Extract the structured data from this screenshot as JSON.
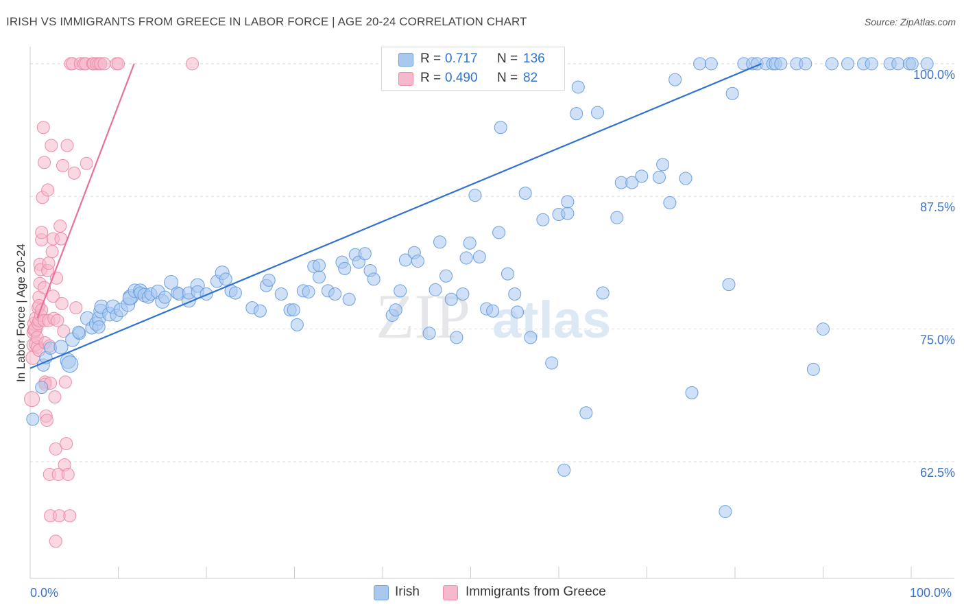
{
  "title": "IRISH VS IMMIGRANTS FROM GREECE IN LABOR FORCE | AGE 20-24 CORRELATION CHART",
  "source": "Source: ZipAtlas.com",
  "watermark": {
    "zip": "ZIP",
    "atlas": "atlas"
  },
  "colors": {
    "irish_fill": "#a9c8f0",
    "irish_stroke": "#6a9fe0",
    "irish_line": "#2f72d1",
    "greece_fill": "#f6b8cb",
    "greece_stroke": "#ee8aa8",
    "greece_line": "#e8709a",
    "axis_label": "#3a72c8",
    "grid": "#dddddd"
  },
  "legend": {
    "rows": [
      {
        "r_label": "R =",
        "r_value": "0.717",
        "n_label": "N =",
        "n_value": "136"
      },
      {
        "r_label": "R =",
        "r_value": "0.490",
        "n_label": "N =",
        "n_value": "82"
      }
    ]
  },
  "bottom_legend": {
    "series1": "Irish",
    "series2": "Immigrants from Greece"
  },
  "chart_data": {
    "type": "scatter",
    "title": "IRISH VS IMMIGRANTS FROM GREECE IN LABOR FORCE | AGE 20-24 CORRELATION CHART",
    "xlabel": "",
    "ylabel": "In Labor Force | Age 20-24",
    "xlim": [
      0,
      100
    ],
    "ylim": [
      51.5,
      102
    ],
    "x_tick_labels": [
      "0.0%",
      "100.0%"
    ],
    "y_ticks": [
      {
        "value": 62.5,
        "label": "62.5%"
      },
      {
        "value": 75.0,
        "label": "75.0%"
      },
      {
        "value": 87.5,
        "label": "87.5%"
      },
      {
        "value": 100.0,
        "label": "100.0%"
      }
    ],
    "series": [
      {
        "name": "Irish",
        "trend": {
          "x": [
            0,
            83
          ],
          "y": [
            71.3,
            100.0
          ]
        },
        "points": [
          [
            0.3,
            66.5,
            9
          ],
          [
            1.3,
            69.5,
            9
          ],
          [
            1.5,
            71.6,
            9
          ],
          [
            1.8,
            72.3,
            9
          ],
          [
            2.3,
            73.2,
            9
          ],
          [
            3.5,
            73.3,
            10
          ],
          [
            4.3,
            72.0,
            11
          ],
          [
            4.5,
            71.7,
            12
          ],
          [
            4.8,
            74.0,
            10
          ],
          [
            5.6,
            74.6,
            9
          ],
          [
            5.5,
            74.7,
            9
          ],
          [
            6.5,
            76.0,
            10
          ],
          [
            7.0,
            75.1,
            9
          ],
          [
            7.5,
            75.5,
            10
          ],
          [
            7.8,
            76.0,
            10
          ],
          [
            7.8,
            75.2,
            9
          ],
          [
            8.0,
            76.7,
            10
          ],
          [
            8.1,
            77.1,
            10
          ],
          [
            9.0,
            76.4,
            10
          ],
          [
            9.4,
            77.1,
            10
          ],
          [
            9.8,
            76.3,
            9
          ],
          [
            10.3,
            76.8,
            10
          ],
          [
            11.1,
            77.3,
            10
          ],
          [
            11.4,
            78.0,
            11
          ],
          [
            11.3,
            77.9,
            10
          ],
          [
            11.9,
            78.6,
            10
          ],
          [
            12.5,
            78.6,
            10
          ],
          [
            12.5,
            78.4,
            9
          ],
          [
            13.0,
            78.2,
            10
          ],
          [
            13.4,
            78.0,
            9
          ],
          [
            13.7,
            78.3,
            9
          ],
          [
            14.5,
            78.5,
            10
          ],
          [
            15.0,
            77.6,
            10
          ],
          [
            15.3,
            78.0,
            9
          ],
          [
            16.0,
            79.4,
            10
          ],
          [
            16.7,
            78.4,
            9
          ],
          [
            16.9,
            78.3,
            9
          ],
          [
            18.0,
            77.7,
            10
          ],
          [
            18.0,
            78.4,
            9
          ],
          [
            19.0,
            79.1,
            10
          ],
          [
            19.0,
            78.5,
            9
          ],
          [
            20.0,
            78.3,
            9
          ],
          [
            21.2,
            79.5,
            9
          ],
          [
            21.8,
            80.3,
            10
          ],
          [
            22.2,
            79.7,
            9
          ],
          [
            22.8,
            78.6,
            9
          ],
          [
            23.3,
            78.4,
            9
          ],
          [
            25.2,
            77.0,
            9
          ],
          [
            26.1,
            76.7,
            9
          ],
          [
            26.8,
            79.1,
            9
          ],
          [
            27.1,
            79.6,
            9
          ],
          [
            28.5,
            78.3,
            9
          ],
          [
            29.5,
            76.8,
            9
          ],
          [
            29.9,
            76.8,
            9
          ],
          [
            30.3,
            75.4,
            9
          ],
          [
            31.0,
            78.6,
            9
          ],
          [
            31.6,
            78.5,
            9
          ],
          [
            32.2,
            80.9,
            9
          ],
          [
            32.8,
            79.9,
            9
          ],
          [
            32.8,
            81.0,
            9
          ],
          [
            33.8,
            78.6,
            9
          ],
          [
            34.6,
            78.3,
            9
          ],
          [
            35.4,
            81.3,
            9
          ],
          [
            35.7,
            80.7,
            9
          ],
          [
            36.2,
            77.8,
            9
          ],
          [
            36.9,
            82.0,
            9
          ],
          [
            37.3,
            81.3,
            9
          ],
          [
            38.0,
            82.1,
            9
          ],
          [
            38.6,
            80.5,
            9
          ],
          [
            39.0,
            79.7,
            9
          ],
          [
            41.1,
            76.3,
            9
          ],
          [
            41.5,
            76.8,
            9
          ],
          [
            42.0,
            78.6,
            9
          ],
          [
            42.6,
            81.5,
            9
          ],
          [
            43.6,
            82.2,
            9
          ],
          [
            44.0,
            81.4,
            9
          ],
          [
            45.3,
            74.6,
            9
          ],
          [
            46.0,
            78.7,
            9
          ],
          [
            46.5,
            83.2,
            9
          ],
          [
            47.2,
            80.0,
            9
          ],
          [
            47.8,
            77.8,
            9
          ],
          [
            48.4,
            74.2,
            9
          ],
          [
            49.1,
            78.3,
            9
          ],
          [
            49.5,
            81.7,
            9
          ],
          [
            49.9,
            83.1,
            9
          ],
          [
            50.5,
            87.6,
            9
          ],
          [
            51.0,
            81.8,
            9
          ],
          [
            51.8,
            76.9,
            9
          ],
          [
            52.5,
            76.7,
            9
          ],
          [
            53.2,
            84.1,
            9
          ],
          [
            53.4,
            94.0,
            9
          ],
          [
            54.2,
            80.2,
            9
          ],
          [
            55.0,
            78.3,
            9
          ],
          [
            55.3,
            76.6,
            9
          ],
          [
            56.2,
            87.8,
            9
          ],
          [
            56.8,
            74.2,
            9
          ],
          [
            58.2,
            85.3,
            9
          ],
          [
            59.2,
            71.8,
            9
          ],
          [
            60.0,
            85.8,
            9
          ],
          [
            61.0,
            85.9,
            9
          ],
          [
            61.0,
            87.0,
            9
          ],
          [
            62.0,
            95.3,
            9
          ],
          [
            63.1,
            67.1,
            9
          ],
          [
            64.4,
            95.4,
            9
          ],
          [
            65.0,
            78.4,
            9
          ],
          [
            66.6,
            85.5,
            9
          ],
          [
            67.1,
            88.8,
            9
          ],
          [
            68.3,
            88.8,
            9
          ],
          [
            69.4,
            89.4,
            9
          ],
          [
            71.4,
            89.3,
            9
          ],
          [
            71.8,
            90.5,
            9
          ],
          [
            72.6,
            86.9,
            9
          ],
          [
            73.2,
            98.5,
            9
          ],
          [
            74.4,
            89.2,
            9
          ],
          [
            75.1,
            69.0,
            9
          ],
          [
            76.0,
            100,
            9
          ],
          [
            77.3,
            100,
            9
          ],
          [
            78.9,
            57.8,
            9
          ],
          [
            79.3,
            79.2,
            9
          ],
          [
            79.7,
            97.2,
            9
          ],
          [
            81.0,
            100,
            9
          ],
          [
            82.0,
            100,
            9
          ],
          [
            82.5,
            100,
            9
          ],
          [
            83.5,
            100,
            9
          ],
          [
            84.3,
            100,
            9
          ],
          [
            84.6,
            100,
            9
          ],
          [
            85.2,
            100,
            9
          ],
          [
            87.0,
            100,
            9
          ],
          [
            88.0,
            100,
            9
          ],
          [
            88.9,
            71.2,
            9
          ],
          [
            90.0,
            75.0,
            9
          ],
          [
            91.0,
            100,
            9
          ],
          [
            92.8,
            100,
            9
          ],
          [
            94.6,
            100,
            9
          ],
          [
            95.5,
            100,
            9
          ],
          [
            97.6,
            100,
            9
          ],
          [
            98.5,
            100,
            9
          ],
          [
            99.8,
            100,
            9
          ],
          [
            101.8,
            100,
            9
          ],
          [
            100.1,
            100,
            9
          ],
          [
            60.6,
            61.7,
            9
          ],
          [
            62.2,
            97.8,
            9
          ]
        ]
      },
      {
        "name": "Immigrants from Greece",
        "trend": {
          "x": [
            0.8,
            11.8
          ],
          "y": [
            76.0,
            100.0
          ]
        },
        "points": [
          [
            0.2,
            68.4,
            11
          ],
          [
            0.3,
            72.3,
            10
          ],
          [
            0.4,
            73.5,
            10
          ],
          [
            0.4,
            74.7,
            10
          ],
          [
            0.5,
            74.9,
            10
          ],
          [
            0.5,
            75.5,
            10
          ],
          [
            0.6,
            75.0,
            10
          ],
          [
            0.7,
            73.6,
            10
          ],
          [
            0.7,
            76.0,
            10
          ],
          [
            0.8,
            73.3,
            9
          ],
          [
            0.8,
            74.2,
            9
          ],
          [
            0.9,
            77.0,
            9
          ],
          [
            0.9,
            75.5,
            9
          ],
          [
            1.0,
            78.0,
            9
          ],
          [
            1.0,
            77.2,
            9
          ],
          [
            1.0,
            75.8,
            9
          ],
          [
            1.0,
            73.0,
            9
          ],
          [
            1.1,
            79.3,
            9
          ],
          [
            1.1,
            81.1,
            9
          ],
          [
            1.2,
            80.6,
            9
          ],
          [
            1.2,
            76.3,
            9
          ],
          [
            1.3,
            83.4,
            9
          ],
          [
            1.3,
            84.1,
            9
          ],
          [
            1.3,
            76.8,
            9
          ],
          [
            1.4,
            87.4,
            9
          ],
          [
            1.5,
            94.0,
            9
          ],
          [
            1.6,
            90.7,
            9
          ],
          [
            1.6,
            78.9,
            9
          ],
          [
            1.6,
            75.8,
            9
          ],
          [
            1.7,
            73.7,
            9
          ],
          [
            1.7,
            70.0,
            9
          ],
          [
            1.7,
            69.8,
            9
          ],
          [
            1.8,
            66.8,
            9
          ],
          [
            1.9,
            66.4,
            9
          ],
          [
            2.0,
            88.1,
            9
          ],
          [
            2.0,
            80.5,
            9
          ],
          [
            2.1,
            81.2,
            9
          ],
          [
            2.1,
            75.8,
            9
          ],
          [
            2.2,
            73.4,
            9
          ],
          [
            2.2,
            61.3,
            9
          ],
          [
            2.3,
            57.4,
            9
          ],
          [
            2.3,
            69.9,
            9
          ],
          [
            2.4,
            92.3,
            9
          ],
          [
            2.5,
            82.3,
            9
          ],
          [
            2.6,
            83.5,
            9
          ],
          [
            2.6,
            78.1,
            9
          ],
          [
            2.7,
            76.0,
            9
          ],
          [
            2.8,
            68.6,
            9
          ],
          [
            2.9,
            63.7,
            9
          ],
          [
            2.9,
            55.0,
            9
          ],
          [
            3.0,
            79.8,
            9
          ],
          [
            3.1,
            75.8,
            9
          ],
          [
            3.2,
            61.3,
            9
          ],
          [
            3.3,
            57.4,
            9
          ],
          [
            3.4,
            84.7,
            9
          ],
          [
            3.5,
            83.5,
            9
          ],
          [
            3.6,
            77.4,
            9
          ],
          [
            3.7,
            90.4,
            9
          ],
          [
            3.8,
            74.8,
            9
          ],
          [
            3.9,
            62.2,
            9
          ],
          [
            4.0,
            70.0,
            9
          ],
          [
            4.1,
            64.2,
            9
          ],
          [
            4.2,
            92.3,
            9
          ],
          [
            4.3,
            61.3,
            9
          ],
          [
            4.5,
            57.4,
            9
          ],
          [
            4.6,
            100,
            9
          ],
          [
            4.8,
            100,
            9
          ],
          [
            5.0,
            89.7,
            9
          ],
          [
            5.2,
            77.0,
            9
          ],
          [
            5.7,
            100,
            9
          ],
          [
            6.1,
            100,
            9
          ],
          [
            6.3,
            100,
            9
          ],
          [
            7.1,
            100,
            9
          ],
          [
            7.2,
            100,
            9
          ],
          [
            7.5,
            100,
            9
          ],
          [
            7.8,
            100,
            9
          ],
          [
            8.0,
            100,
            9
          ],
          [
            8.4,
            100,
            9
          ],
          [
            9.8,
            100,
            9
          ],
          [
            10.0,
            100,
            9
          ],
          [
            6.4,
            90.6,
            9
          ],
          [
            18.4,
            100,
            9
          ]
        ]
      }
    ]
  }
}
